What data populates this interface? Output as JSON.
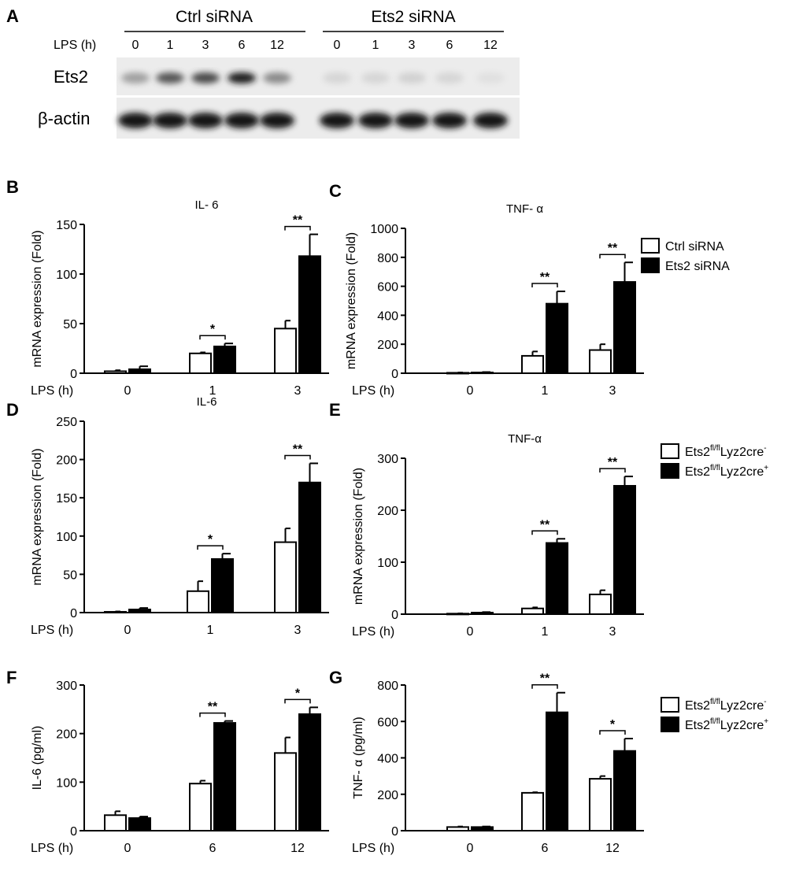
{
  "panel_labels": [
    "A",
    "B",
    "C",
    "D",
    "E",
    "F",
    "G"
  ],
  "blot": {
    "groups": [
      "Ctrl siRNA",
      "Ets2 siRNA"
    ],
    "lps_label": "LPS (h)",
    "lanes": [
      "0",
      "1",
      "3",
      "6",
      "12",
      "0",
      "1",
      "3",
      "6",
      "12"
    ],
    "rows": [
      {
        "name": "Ets2",
        "intensity": [
          0.35,
          0.7,
          0.75,
          0.95,
          0.45,
          0.1,
          0.1,
          0.12,
          0.1,
          0.05
        ]
      },
      {
        "name": "β-actin",
        "intensity": [
          1,
          1,
          1,
          1,
          1,
          1,
          1,
          1,
          1,
          1
        ]
      }
    ]
  },
  "legends": [
    {
      "entries": [
        "Ctrl siRNA",
        "Ets2 siRNA"
      ]
    },
    {
      "entries": [
        {
          "base": "Ets2",
          "sup": "fl/fl",
          "mid": "Lyz2cre",
          "sup2": "-"
        },
        {
          "base": "Ets2",
          "sup": "fl/fl",
          "mid": "Lyz2cre",
          "sup2": "+"
        }
      ]
    },
    {
      "entries": [
        {
          "base": "Ets2",
          "sup": "fl/fl",
          "mid": "Lyz2cre",
          "sup2": "-"
        },
        {
          "base": "Ets2",
          "sup": "fl/fl",
          "mid": "Lyz2cre",
          "sup2": "+"
        }
      ]
    }
  ],
  "colors": {
    "control": "#ffffff",
    "treated": "#000000"
  },
  "chart_data": [
    {
      "type": "bar",
      "panel": "B",
      "title": "IL- 6",
      "ylabel": "mRNA expression (Fold)",
      "xlabel": "LPS (h)",
      "categories": [
        "0",
        "1",
        "3"
      ],
      "ylim": [
        0,
        150
      ],
      "yticks": [
        "0",
        "50",
        "100",
        "150"
      ],
      "series": [
        {
          "name": "Ctrl siRNA",
          "values": [
            2,
            20,
            45
          ],
          "errors": [
            1,
            1,
            8
          ]
        },
        {
          "name": "Ets2 siRNA",
          "values": [
            4,
            27,
            118
          ],
          "errors": [
            3,
            3,
            22
          ]
        }
      ],
      "annotations": [
        {
          "category": "1",
          "text": "*"
        },
        {
          "category": "3",
          "text": "**"
        }
      ]
    },
    {
      "type": "bar",
      "panel": "C",
      "title": "TNF- α",
      "ylabel": "mRNA expression (Fold)",
      "xlabel": "LPS (h)",
      "categories": [
        "0",
        "1",
        "3"
      ],
      "ylim": [
        0,
        1000
      ],
      "yticks": [
        "0",
        "200",
        "400",
        "600",
        "800",
        "1000"
      ],
      "series": [
        {
          "name": "Ctrl siRNA",
          "values": [
            3,
            120,
            160
          ],
          "errors": [
            2,
            30,
            40
          ]
        },
        {
          "name": "Ets2 siRNA",
          "values": [
            5,
            480,
            630
          ],
          "errors": [
            3,
            85,
            135
          ]
        }
      ],
      "annotations": [
        {
          "category": "1",
          "text": "**"
        },
        {
          "category": "3",
          "text": "**"
        }
      ]
    },
    {
      "type": "bar",
      "panel": "D",
      "title": "IL-6",
      "ylabel": "mRNA expression (Fold)",
      "xlabel": "LPS (h)",
      "categories": [
        "0",
        "1",
        "3"
      ],
      "ylim": [
        0,
        250
      ],
      "yticks": [
        "0",
        "50",
        "100",
        "150",
        "200",
        "250"
      ],
      "series": [
        {
          "name": "Ets2fl/flLyz2cre-",
          "values": [
            1,
            28,
            92
          ],
          "errors": [
            0.5,
            13,
            18
          ]
        },
        {
          "name": "Ets2fl/flLyz2cre+",
          "values": [
            4,
            70,
            170
          ],
          "errors": [
            2,
            7,
            25
          ]
        }
      ],
      "annotations": [
        {
          "category": "1",
          "text": "*"
        },
        {
          "category": "3",
          "text": "**"
        }
      ]
    },
    {
      "type": "bar",
      "panel": "E",
      "title": "TNF-α",
      "ylabel": "mRNA expression (Fold)",
      "xlabel": "LPS (h)",
      "categories": [
        "0",
        "1",
        "3"
      ],
      "ylim": [
        0,
        300
      ],
      "yticks": [
        "0",
        "100",
        "200",
        "300"
      ],
      "series": [
        {
          "name": "Ets2fl/flLyz2cre-",
          "values": [
            1,
            11,
            38
          ],
          "errors": [
            0.5,
            2,
            8
          ]
        },
        {
          "name": "Ets2fl/flLyz2cre+",
          "values": [
            3,
            137,
            247
          ],
          "errors": [
            1,
            8,
            18
          ]
        }
      ],
      "annotations": [
        {
          "category": "1",
          "text": "**"
        },
        {
          "category": "3",
          "text": "**"
        }
      ]
    },
    {
      "type": "bar",
      "panel": "F",
      "title": "",
      "ylabel": "IL-6 (pg/ml)",
      "xlabel": "LPS (h)",
      "categories": [
        "0",
        "6",
        "12"
      ],
      "ylim": [
        0,
        300
      ],
      "yticks": [
        "0",
        "100",
        "200",
        "300"
      ],
      "series": [
        {
          "name": "Ets2fl/flLyz2cre-",
          "values": [
            32,
            97,
            160
          ],
          "errors": [
            8,
            6,
            32
          ]
        },
        {
          "name": "Ets2fl/flLyz2cre+",
          "values": [
            26,
            222,
            240
          ],
          "errors": [
            3,
            4,
            14
          ]
        }
      ],
      "annotations": [
        {
          "category": "6",
          "text": "**"
        },
        {
          "category": "12",
          "text": "*"
        }
      ]
    },
    {
      "type": "bar",
      "panel": "G",
      "title": "",
      "ylabel": "TNF- α (pg/ml)",
      "xlabel": "LPS (h)",
      "categories": [
        "0",
        "6",
        "12"
      ],
      "ylim": [
        0,
        800
      ],
      "yticks": [
        "0",
        "200",
        "400",
        "600",
        "800"
      ],
      "series": [
        {
          "name": "Ets2fl/flLyz2cre-",
          "values": [
            20,
            208,
            285
          ],
          "errors": [
            3,
            3,
            15
          ]
        },
        {
          "name": "Ets2fl/flLyz2cre+",
          "values": [
            20,
            650,
            438
          ],
          "errors": [
            3,
            108,
            68
          ]
        }
      ],
      "annotations": [
        {
          "category": "6",
          "text": "**"
        },
        {
          "category": "12",
          "text": "*"
        }
      ]
    }
  ]
}
